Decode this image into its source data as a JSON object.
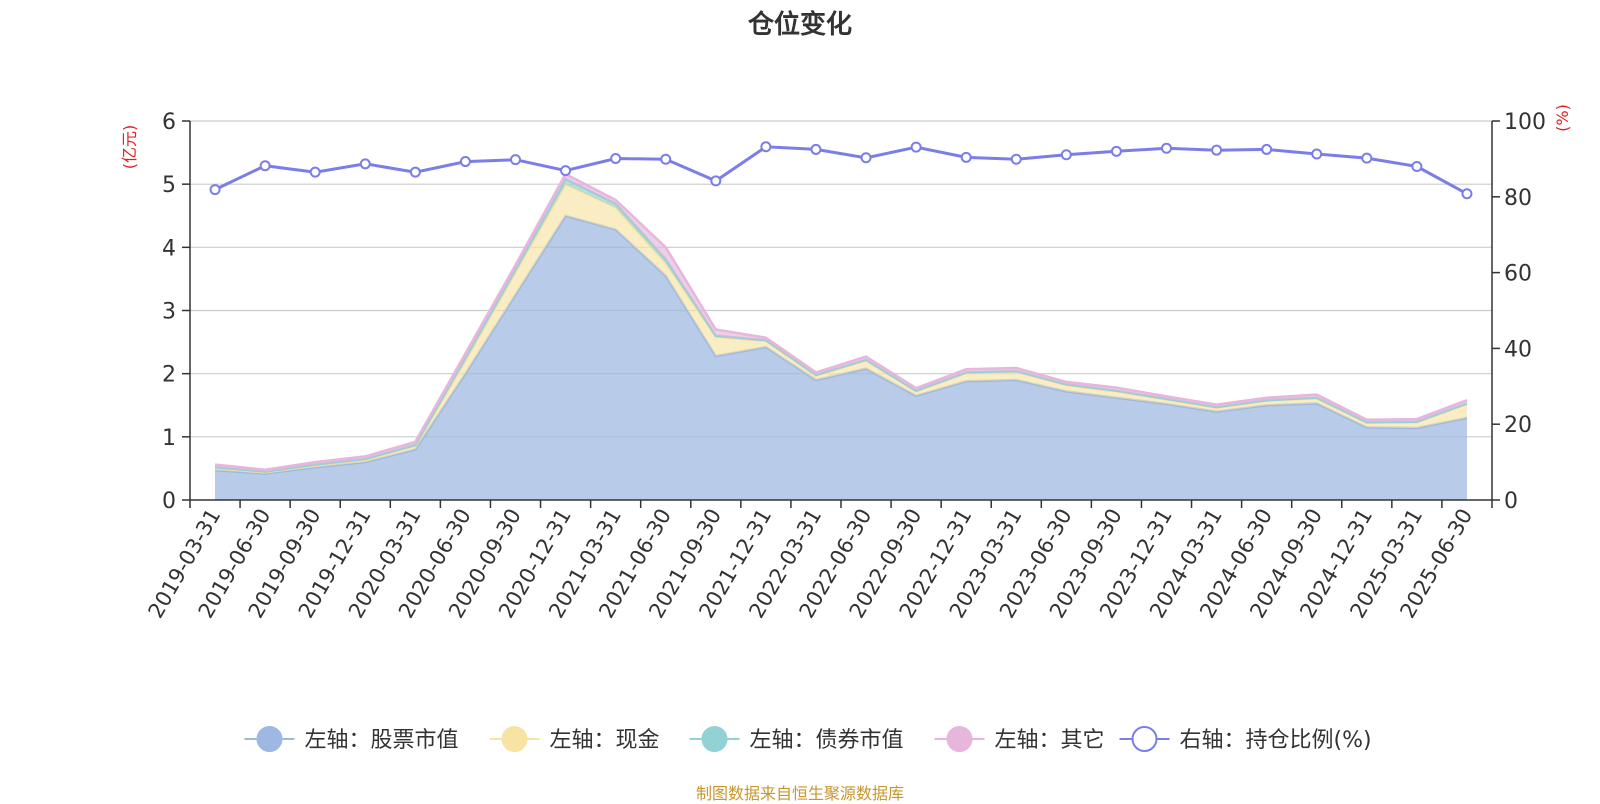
{
  "chart_data": {
    "type": "area",
    "title": "仓位变化",
    "source_note": "制图数据来自恒生聚源数据库",
    "y_left": {
      "unit_label": "(亿元)",
      "min": 0,
      "max": 6,
      "ticks": [
        0,
        1,
        2,
        3,
        4,
        5,
        6
      ]
    },
    "y_right": {
      "unit_label": "(%)",
      "min": 0,
      "max": 100,
      "ticks": [
        0,
        20,
        40,
        60,
        80,
        100
      ]
    },
    "grid": true,
    "legend_position": "bottom",
    "x": [
      "2019-03-31",
      "2019-06-30",
      "2019-09-30",
      "2019-12-31",
      "2020-03-31",
      "2020-06-30",
      "2020-09-30",
      "2020-12-31",
      "2021-03-31",
      "2021-06-30",
      "2021-09-30",
      "2021-12-31",
      "2022-03-31",
      "2022-06-30",
      "2022-09-30",
      "2022-12-31",
      "2023-03-31",
      "2023-06-30",
      "2023-09-30",
      "2023-12-31",
      "2024-03-31",
      "2024-06-30",
      "2024-09-30",
      "2024-12-31",
      "2025-03-31",
      "2025-06-30"
    ],
    "stacked_series": [
      {
        "name": "左轴：股票市值",
        "axis": "left",
        "color": "#9db8e2",
        "values": [
          0.47,
          0.42,
          0.52,
          0.6,
          0.8,
          2.0,
          3.25,
          4.5,
          4.28,
          3.55,
          2.28,
          2.42,
          1.9,
          2.08,
          1.65,
          1.88,
          1.9,
          1.72,
          1.62,
          1.52,
          1.4,
          1.5,
          1.53,
          1.15,
          1.14,
          1.3
        ]
      },
      {
        "name": "左轴：现金",
        "axis": "left",
        "color": "#f7e3a4",
        "values": [
          0.04,
          0.02,
          0.03,
          0.04,
          0.06,
          0.2,
          0.35,
          0.5,
          0.35,
          0.2,
          0.3,
          0.1,
          0.07,
          0.13,
          0.07,
          0.13,
          0.13,
          0.1,
          0.1,
          0.07,
          0.06,
          0.07,
          0.08,
          0.07,
          0.09,
          0.22
        ]
      },
      {
        "name": "左轴：债券市值",
        "axis": "left",
        "color": "#93d2d4",
        "values": [
          0.01,
          0.01,
          0.01,
          0.01,
          0.01,
          0.05,
          0.05,
          0.08,
          0.06,
          0.06,
          0.02,
          0.01,
          0.01,
          0.01,
          0.01,
          0.01,
          0.01,
          0.01,
          0.01,
          0.01,
          0.01,
          0.01,
          0.01,
          0.01,
          0.01,
          0.01
        ]
      },
      {
        "name": "左轴：其它",
        "axis": "left",
        "color": "#e6b6dc",
        "values": [
          0.04,
          0.03,
          0.04,
          0.04,
          0.05,
          0.07,
          0.07,
          0.08,
          0.06,
          0.19,
          0.1,
          0.04,
          0.04,
          0.05,
          0.04,
          0.05,
          0.05,
          0.04,
          0.05,
          0.04,
          0.04,
          0.04,
          0.05,
          0.04,
          0.04,
          0.05
        ]
      }
    ],
    "line_series": {
      "name": "右轴：持仓比例(%)",
      "axis": "right",
      "color": "#7b7de8",
      "values": [
        81.9,
        88.2,
        86.5,
        88.7,
        86.5,
        89.3,
        89.8,
        86.9,
        90.1,
        89.9,
        84.2,
        93.2,
        92.5,
        90.3,
        93.1,
        90.4,
        89.9,
        91.1,
        92.0,
        92.8,
        92.3,
        92.5,
        91.3,
        90.2,
        88.0,
        80.8
      ]
    }
  }
}
